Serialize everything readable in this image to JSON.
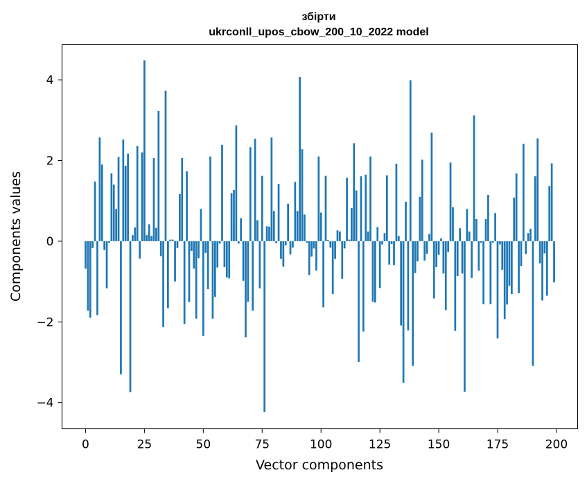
{
  "chart_data": {
    "type": "bar",
    "title_line1": "збірти",
    "title_line2": "ukrconll_upos_cbow_200_10_2022 model",
    "xlabel": "Vector components",
    "ylabel": "Components values",
    "bar_color": "#1f77b4",
    "xlim": [
      -10,
      209
    ],
    "ylim": [
      -4.65,
      4.87
    ],
    "xticks": [
      0,
      25,
      50,
      75,
      100,
      125,
      150,
      175,
      200
    ],
    "yticks": [
      -4,
      -2,
      0,
      2,
      4
    ],
    "xtick_labels": [
      "0",
      "25",
      "50",
      "75",
      "100",
      "125",
      "150",
      "175",
      "200"
    ],
    "ytick_labels": [
      "−4",
      "−2",
      "0",
      "2",
      "4"
    ],
    "values": [
      -0.68,
      -1.72,
      -1.9,
      -0.17,
      1.48,
      -1.83,
      2.57,
      1.9,
      -0.22,
      -1.17,
      -0.04,
      1.68,
      1.4,
      0.8,
      2.09,
      -3.3,
      2.52,
      1.87,
      2.17,
      -3.74,
      0.15,
      0.34,
      2.36,
      -0.43,
      2.2,
      4.48,
      0.15,
      0.42,
      0.13,
      2.06,
      0.33,
      3.23,
      -0.37,
      -2.13,
      3.73,
      -1.66,
      0.04,
      0.04,
      -1.0,
      -0.17,
      1.17,
      2.06,
      -2.05,
      1.73,
      -1.51,
      -0.24,
      -0.68,
      -1.92,
      -0.42,
      0.8,
      -2.35,
      -0.29,
      -1.19,
      2.1,
      -1.92,
      -1.38,
      -0.65,
      -0.06,
      2.39,
      -0.64,
      -0.9,
      -0.92,
      1.19,
      1.27,
      2.87,
      -0.06,
      0.57,
      -0.98,
      -2.38,
      -1.5,
      2.33,
      -1.72,
      2.54,
      0.52,
      -1.17,
      1.62,
      -4.23,
      0.37,
      0.36,
      2.57,
      0.75,
      -0.05,
      1.42,
      -0.44,
      -0.63,
      -0.1,
      0.93,
      -0.33,
      -0.16,
      1.47,
      0.75,
      4.07,
      2.28,
      0.66,
      -0.04,
      -0.84,
      -0.38,
      -0.18,
      -0.73,
      2.1,
      0.71,
      -1.64,
      1.62,
      0.03,
      -0.16,
      -1.31,
      -0.44,
      0.27,
      0.24,
      -0.93,
      -0.18,
      1.57,
      0.04,
      0.82,
      2.43,
      1.26,
      -2.99,
      1.61,
      -2.24,
      1.65,
      0.24,
      2.1,
      -1.5,
      -1.52,
      0.35,
      -1.16,
      -0.08,
      0.2,
      1.63,
      -0.58,
      -0.07,
      -0.59,
      1.92,
      0.13,
      -2.09,
      -3.51,
      0.98,
      -2.21,
      3.99,
      -3.09,
      -0.79,
      -0.5,
      1.1,
      2.02,
      -0.48,
      -0.31,
      0.18,
      2.69,
      -1.42,
      -0.64,
      -0.34,
      0.07,
      -0.8,
      -1.71,
      -0.27,
      1.95,
      0.84,
      -2.22,
      -0.86,
      0.32,
      -0.8,
      -3.73,
      0.8,
      0.24,
      -0.91,
      3.12,
      0.55,
      -0.73,
      -0.04,
      -1.56,
      0.55,
      1.15,
      -1.56,
      -0.04,
      0.7,
      -2.41,
      -0.08,
      -0.71,
      -1.93,
      -1.57,
      -1.11,
      -1.31,
      1.08,
      1.68,
      -1.29,
      -0.62,
      2.41,
      -0.32,
      0.2,
      0.31,
      -3.09,
      1.61,
      2.55,
      -0.55,
      -1.47,
      -0.3,
      -1.35,
      1.37,
      1.93,
      -1.02
    ]
  }
}
